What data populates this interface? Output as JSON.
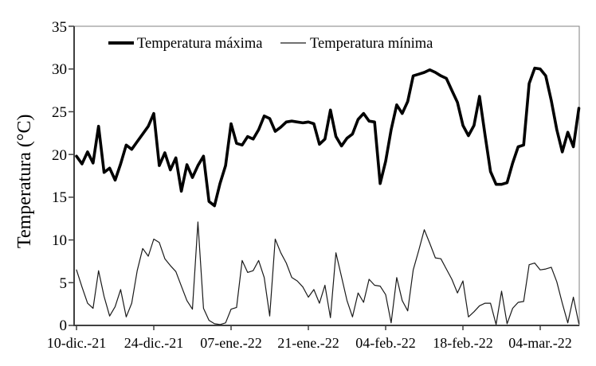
{
  "chart_data": {
    "type": "line",
    "title": "",
    "xlabel": "",
    "ylabel": "Temperatura (°C)",
    "ylim": [
      0,
      35
    ],
    "ytick_interval": 5,
    "ytick_labels_top_to_bottom": [
      "35",
      "30",
      "25",
      "20",
      "15",
      "10",
      "5",
      "0"
    ],
    "ytick_values": [
      35,
      30,
      25,
      20,
      15,
      10,
      5,
      0
    ],
    "xtick_labels": [
      "10-dic.-21",
      "24-dic.-21",
      "07-ene.-22",
      "21-ene.-22",
      "04-feb.-22",
      "18-feb.-22",
      "04-mar.-22"
    ],
    "xtick_days": [
      0,
      14,
      28,
      42,
      56,
      70,
      84
    ],
    "x_is_daily_series": true,
    "x_day_range": [
      0,
      91
    ],
    "grid": false,
    "legend_position": "top-inside-horizontal",
    "series": [
      {
        "name": "Temperatura máxima",
        "color": "#000000",
        "stroke_width": 3.6,
        "values": [
          19.8,
          18.9,
          20.3,
          19.0,
          23.3,
          17.9,
          18.4,
          17.0,
          18.9,
          21.1,
          20.6,
          21.5,
          22.4,
          23.3,
          24.8,
          18.7,
          20.2,
          18.2,
          19.6,
          15.7,
          18.8,
          17.3,
          18.7,
          19.8,
          14.5,
          14.0,
          16.6,
          18.7,
          23.6,
          21.3,
          21.1,
          22.1,
          21.8,
          22.9,
          24.5,
          24.2,
          22.7,
          23.2,
          23.8,
          23.9,
          23.8,
          23.7,
          23.8,
          23.6,
          21.2,
          21.8,
          25.2,
          22.1,
          21.0,
          21.9,
          22.4,
          24.1,
          24.8,
          23.9,
          23.8,
          16.6,
          19.2,
          22.9,
          25.8,
          24.8,
          26.2,
          29.2,
          29.4,
          29.6,
          29.9,
          29.6,
          29.2,
          28.9,
          27.5,
          26.1,
          23.4,
          22.2,
          23.4,
          26.8,
          22.3,
          18.0,
          16.5,
          16.5,
          16.7,
          19.0,
          20.9,
          21.1,
          28.3,
          30.1,
          30.0,
          29.2,
          26.3,
          22.9,
          20.3,
          22.6,
          20.9,
          25.4
        ]
      },
      {
        "name": "Temperatura mínima",
        "color": "#1a1a1a",
        "stroke_width": 1.2,
        "values": [
          6.5,
          4.5,
          2.6,
          2.0,
          6.4,
          3.4,
          1.1,
          2.2,
          4.2,
          1.0,
          2.6,
          6.4,
          9.0,
          8.1,
          10.1,
          9.7,
          7.8,
          7.0,
          6.3,
          4.6,
          2.9,
          1.9,
          12.1,
          2.0,
          0.6,
          0.2,
          0.1,
          0.3,
          1.9,
          2.1,
          7.6,
          6.2,
          6.4,
          7.6,
          5.6,
          1.1,
          10.1,
          8.5,
          7.3,
          5.6,
          5.2,
          4.5,
          3.3,
          4.2,
          2.6,
          4.7,
          0.9,
          8.5,
          5.7,
          2.9,
          1.0,
          3.8,
          2.7,
          5.4,
          4.7,
          4.6,
          3.6,
          0.3,
          5.6,
          2.9,
          1.7,
          6.5,
          8.8,
          11.2,
          9.6,
          7.9,
          7.8,
          6.6,
          5.4,
          3.8,
          5.2,
          1.0,
          1.6,
          2.3,
          2.6,
          2.6,
          0.1,
          4.0,
          0.2,
          2.0,
          2.7,
          2.8,
          7.1,
          7.3,
          6.5,
          6.6,
          6.8,
          5.1,
          2.6,
          0.3,
          3.3,
          0.2
        ]
      }
    ],
    "colors": {
      "background": "#ffffff",
      "plot_box_border": "#808080",
      "axis_line": "#404040",
      "tick_mark": "#404040",
      "text": "#000000"
    }
  }
}
